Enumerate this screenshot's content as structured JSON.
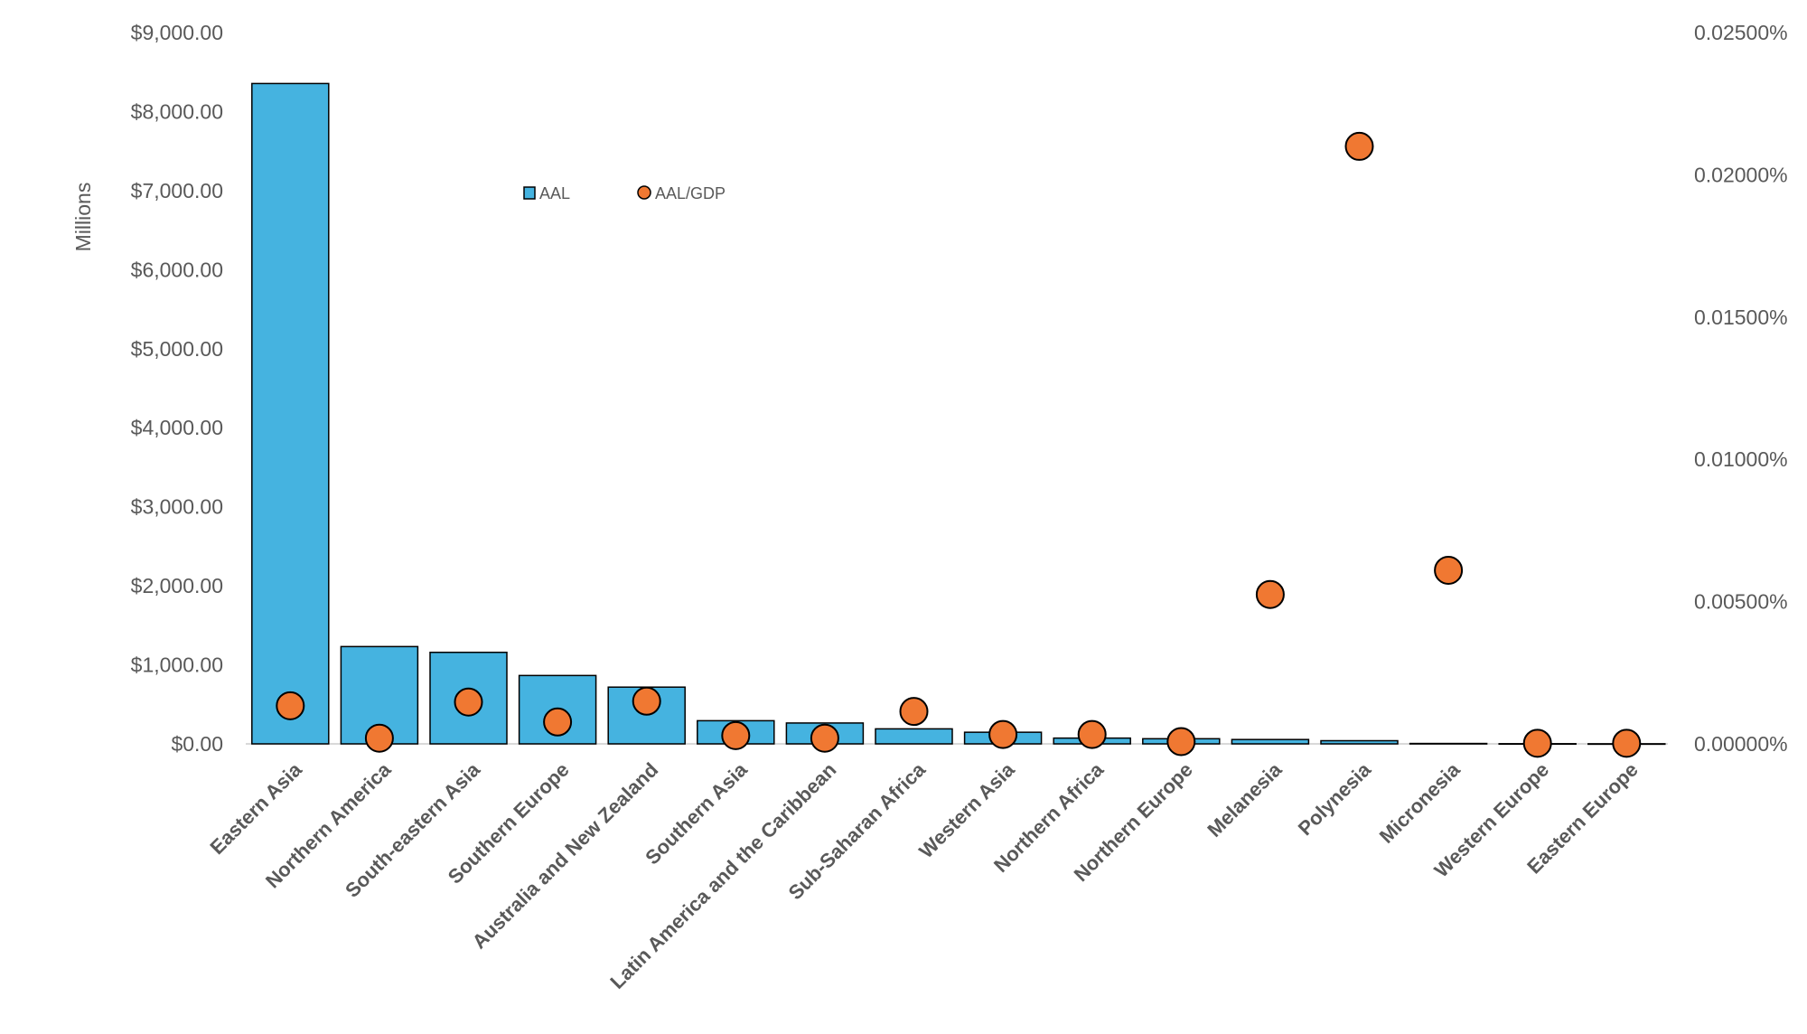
{
  "chart_data": {
    "type": "bar+scatter",
    "title": "",
    "ylabel": "Millions",
    "categories": [
      "Eastern Asia",
      "Northern America",
      "South-eastern Asia",
      "Southern Europe",
      "Australia and New Zealand",
      "Southern Asia",
      "Latin America and the Caribbean",
      "Sub-Saharan Africa",
      "Western Asia",
      "Northern Africa",
      "Northern Europe",
      "Melanesia",
      "Polynesia",
      "Micronesia",
      "Western Europe",
      "Eastern Europe"
    ],
    "series": [
      {
        "name": "AAL",
        "type": "bar",
        "axis": "left",
        "color": "#45B3E0",
        "values": [
          8355,
          1231,
          1158,
          865,
          718,
          293,
          264,
          190,
          147,
          73,
          65,
          55,
          40,
          5,
          2,
          1
        ]
      },
      {
        "name": "AAL/GDP",
        "type": "scatter",
        "axis": "right",
        "color": "#F07832",
        "values": [
          0.00134,
          0.0002,
          0.00147,
          0.00077,
          0.0015,
          0.00029,
          0.0002,
          0.00114,
          0.00033,
          0.00033,
          8e-05,
          0.00525,
          0.021,
          0.0061,
          2e-05,
          2e-05
        ]
      }
    ],
    "ylim_left": [
      0,
      9000
    ],
    "ylim_right": [
      0,
      0.025
    ],
    "left_ticks": [
      "$0.00",
      "$1,000.00",
      "$2,000.00",
      "$3,000.00",
      "$4,000.00",
      "$5,000.00",
      "$6,000.00",
      "$7,000.00",
      "$8,000.00",
      "$9,000.00"
    ],
    "right_ticks": [
      "0.00000%",
      "0.00500%",
      "0.01000%",
      "0.01500%",
      "0.02000%",
      "0.02500%"
    ],
    "legend": {
      "placement": "top-center",
      "items": [
        "AAL",
        "AAL/GDP"
      ]
    },
    "grid": false
  }
}
